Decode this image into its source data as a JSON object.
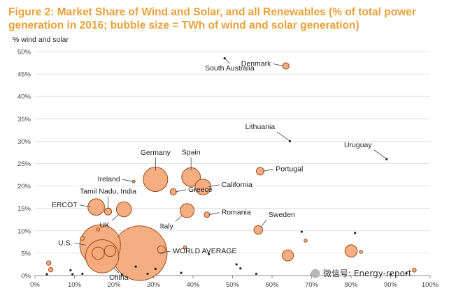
{
  "chart_data": {
    "type": "scatter",
    "title": "Figure 2: Market Share of Wind and Solar, and all Renewables (% of total power generation in 2016; bubble size = TWh of wind and solar generation)",
    "ylabel": "% wind and solar",
    "xlabel": "",
    "xlim": [
      0,
      100
    ],
    "ylim": [
      0,
      50
    ],
    "xticks": [
      "0%",
      "10%",
      "20%",
      "30%",
      "40%",
      "50%",
      "60%",
      "70%",
      "80%",
      "90%",
      "100%"
    ],
    "yticks": [
      "0%",
      "5%",
      "10%",
      "15%",
      "20%",
      "25%",
      "30%",
      "35%",
      "40%",
      "45%",
      "50%"
    ],
    "grid": true,
    "bubble_color": "#f4a97b",
    "bubble_stroke": "#9a4a1a",
    "points": [
      {
        "label": "South Australia",
        "x": 48,
        "y": 48.5,
        "size": 1,
        "label_pos": "below"
      },
      {
        "label": "Denmark",
        "x": 63.5,
        "y": 46.8,
        "size": 8,
        "label_pos": "left"
      },
      {
        "label": "Lithuania",
        "x": 64.5,
        "y": 30,
        "size": 0.5,
        "label_pos": "above-left"
      },
      {
        "label": "Uruguay",
        "x": 89,
        "y": 26,
        "size": 1,
        "label_pos": "above-left"
      },
      {
        "label": "Germany",
        "x": 30.5,
        "y": 21.5,
        "size": 120,
        "label_pos": "above"
      },
      {
        "label": "Spain",
        "x": 39.5,
        "y": 22,
        "size": 70,
        "label_pos": "above"
      },
      {
        "label": "California",
        "x": 42.5,
        "y": 19.8,
        "size": 50,
        "label_pos": "right"
      },
      {
        "label": "Portugal",
        "x": 57,
        "y": 23.3,
        "size": 12,
        "label_pos": "right"
      },
      {
        "label": "Ireland",
        "x": 25,
        "y": 21,
        "size": 1.5,
        "label_pos": "left"
      },
      {
        "label": "Greece",
        "x": 35,
        "y": 18.7,
        "size": 8,
        "label_pos": "right"
      },
      {
        "label": "Tamil Nadu, India",
        "x": 18.5,
        "y": 14.3,
        "size": 10,
        "label_pos": "above"
      },
      {
        "label": "ERCOT",
        "x": 15.5,
        "y": 15.3,
        "size": 55,
        "label_pos": "left"
      },
      {
        "label": "UK",
        "x": 22.5,
        "y": 14.8,
        "size": 45,
        "label_pos": "below-left"
      },
      {
        "label": "Italy",
        "x": 38.5,
        "y": 14.5,
        "size": 40,
        "label_pos": "below-left"
      },
      {
        "label": "Romania",
        "x": 43.5,
        "y": 13.6,
        "size": 6,
        "label_pos": "right"
      },
      {
        "label": "Sweden",
        "x": 56.5,
        "y": 10.2,
        "size": 15,
        "label_pos": "above-right"
      },
      {
        "label": "U.S.",
        "x": 16.5,
        "y": 6.8,
        "size": 330,
        "label_pos": "left"
      },
      {
        "label": "China",
        "x": 17,
        "y": 4.3,
        "size": 220,
        "label_pos": "below"
      },
      {
        "label": "WORLD AVERAGE",
        "x": 26.5,
        "y": 5,
        "size": 600,
        "label_pos": "right"
      },
      {
        "label": "",
        "x": 16,
        "y": 10.3,
        "size": 2
      },
      {
        "label": "",
        "x": 19,
        "y": 5.5,
        "size": 25
      },
      {
        "label": "",
        "x": 16,
        "y": 5,
        "size": 30
      },
      {
        "label": "",
        "x": 32,
        "y": 5.8,
        "size": 12
      },
      {
        "label": "",
        "x": 38,
        "y": 6.3,
        "size": 2
      },
      {
        "label": "",
        "x": 64,
        "y": 4.5,
        "size": 25
      },
      {
        "label": "",
        "x": 67.5,
        "y": 9.8,
        "size": 0.3
      },
      {
        "label": "",
        "x": 68.5,
        "y": 7.8,
        "size": 2
      },
      {
        "label": "",
        "x": 80,
        "y": 5.5,
        "size": 30
      },
      {
        "label": "",
        "x": 82.5,
        "y": 5.3,
        "size": 2
      },
      {
        "label": "",
        "x": 81,
        "y": 9.5,
        "size": 0.2
      },
      {
        "label": "",
        "x": 96,
        "y": 1.2,
        "size": 3
      },
      {
        "label": "",
        "x": 12,
        "y": 8.3,
        "size": 3
      },
      {
        "label": "",
        "x": 3.5,
        "y": 2.8,
        "size": 4
      },
      {
        "label": "",
        "x": 4,
        "y": 1.3,
        "size": 4
      },
      {
        "label": "",
        "x": 3,
        "y": 0.3,
        "size": 0.5
      },
      {
        "label": "",
        "x": 9,
        "y": 1.2,
        "size": 0.5
      },
      {
        "label": "",
        "x": 9.5,
        "y": 0.3,
        "size": 0.5
      },
      {
        "label": "",
        "x": 12,
        "y": 0.4,
        "size": 0.5
      },
      {
        "label": "",
        "x": 22,
        "y": 0.2,
        "size": 0.3
      },
      {
        "label": "",
        "x": 25.5,
        "y": 2,
        "size": 0.3
      },
      {
        "label": "",
        "x": 28.5,
        "y": 0.4,
        "size": 0.3
      },
      {
        "label": "",
        "x": 30.5,
        "y": 1.5,
        "size": 0.3
      },
      {
        "label": "",
        "x": 37,
        "y": 0.6,
        "size": 0.3
      },
      {
        "label": "",
        "x": 44,
        "y": 4.8,
        "size": 1
      },
      {
        "label": "",
        "x": 51,
        "y": 2.5,
        "size": 0.3
      },
      {
        "label": "",
        "x": 52,
        "y": 1.6,
        "size": 0.3
      },
      {
        "label": "",
        "x": 56,
        "y": 0.4,
        "size": 0.3
      },
      {
        "label": "",
        "x": 70,
        "y": 0.3,
        "size": 0.3
      },
      {
        "label": "",
        "x": 90,
        "y": 0.3,
        "size": 0.3
      },
      {
        "label": "",
        "x": 94,
        "y": 0.5,
        "size": 0.3
      }
    ]
  },
  "watermark": "微信号: Energy-report"
}
